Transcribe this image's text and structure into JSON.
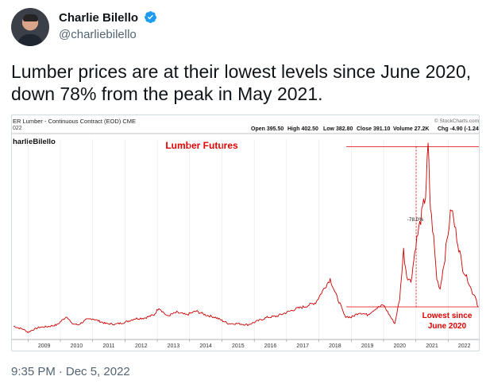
{
  "tweet": {
    "author_name": "Charlie Bilello",
    "handle": "@charliebilello",
    "text": "Lumber prices are at their lowest levels since June 2020, down 78% from the peak in May 2021.",
    "time": "9:35 PM",
    "separator": "·",
    "date": "Dec 5, 2022"
  },
  "chart_data": {
    "type": "line",
    "header_title": "ER Lumber - Continuous Contract (EOD) CME",
    "header_date": "022",
    "stats": [
      "Open 395.50",
      "High 402.50",
      "Low 382.80",
      "Close 391.10",
      "Volume 27.2K",
      "Chg -4.90 (-1.24%)"
    ],
    "source_label": "© StockCharts.com",
    "watermark": "harlieBilello",
    "title": "Lumber Futures",
    "annotations": [
      {
        "text": "-78.0%"
      },
      {
        "text": "Lowest since"
      },
      {
        "text": "June 2020"
      }
    ],
    "x_tick_labels": [
      "2009",
      "2010",
      "2011",
      "2012",
      "2013",
      "2014",
      "2015",
      "2016",
      "2017",
      "2018",
      "2019",
      "2020",
      "2021",
      "2022"
    ],
    "x_range": [
      2008.55,
      2022.95
    ],
    "y_range": [
      170,
      1750
    ],
    "series": [
      {
        "color": "#cc0000",
        "x": [
          2008.55,
          2008.7,
          2008.85,
          2009.0,
          2009.15,
          2009.35,
          2009.6,
          2009.9,
          2010.2,
          2010.35,
          2010.55,
          2010.8,
          2011.0,
          2011.2,
          2011.4,
          2011.7,
          2012.0,
          2012.3,
          2012.6,
          2012.9,
          2013.05,
          2013.3,
          2013.6,
          2013.9,
          2014.2,
          2014.5,
          2014.8,
          2015.2,
          2015.5,
          2015.8,
          2016.1,
          2016.4,
          2016.7,
          2017.0,
          2017.3,
          2017.6,
          2017.9,
          2018.2,
          2018.35,
          2018.5,
          2018.65,
          2018.8,
          2019.0,
          2019.25,
          2019.5,
          2019.75,
          2020.0,
          2020.25,
          2020.35,
          2020.5,
          2020.62,
          2020.72,
          2020.85,
          2021.0,
          2021.15,
          2021.3,
          2021.38,
          2021.45,
          2021.55,
          2021.65,
          2021.75,
          2021.9,
          2022.0,
          2022.1,
          2022.2,
          2022.3,
          2022.45,
          2022.6,
          2022.75,
          2022.85,
          2022.92
        ],
        "y": [
          240,
          225,
          215,
          190,
          210,
          230,
          235,
          250,
          320,
          260,
          250,
          290,
          300,
          280,
          260,
          255,
          270,
          300,
          305,
          330,
          390,
          320,
          350,
          330,
          360,
          330,
          310,
          260,
          260,
          250,
          280,
          310,
          320,
          350,
          380,
          400,
          430,
          560,
          620,
          510,
          420,
          320,
          310,
          350,
          330,
          380,
          410,
          300,
          260,
          460,
          850,
          640,
          600,
          900,
          1100,
          1300,
          1690,
          1200,
          950,
          620,
          540,
          800,
          1000,
          1200,
          1050,
          920,
          700,
          620,
          510,
          480,
          395
        ]
      }
    ],
    "reference_levels": {
      "peak": 1690,
      "low": 395,
      "peak_x": 2021.38
    }
  }
}
